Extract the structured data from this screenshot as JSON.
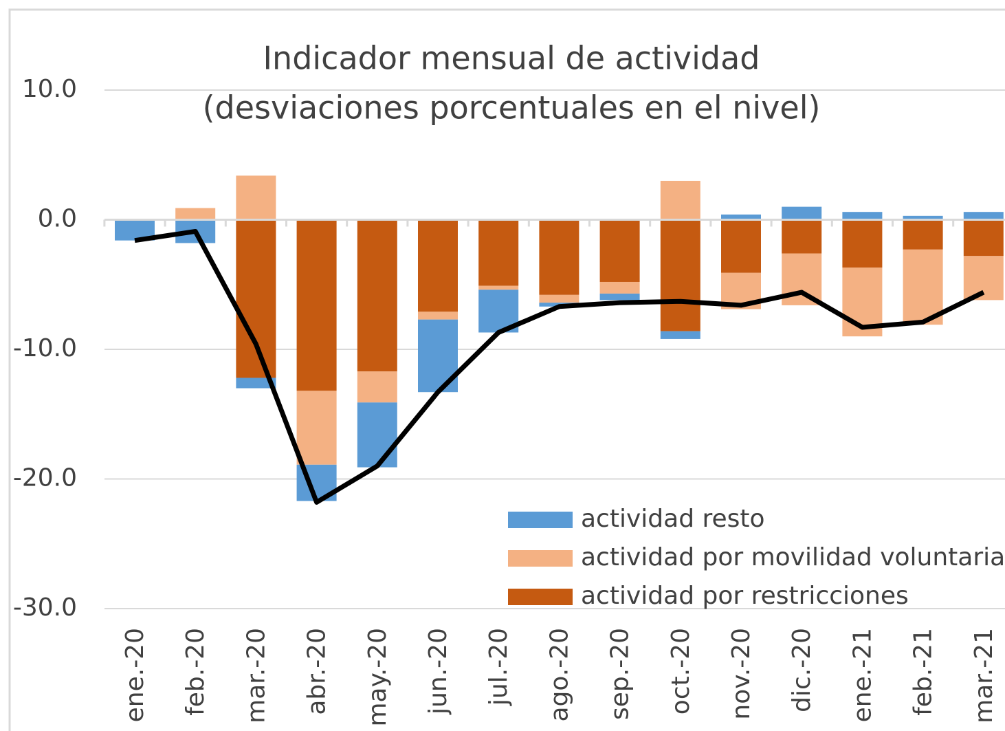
{
  "chart_data": {
    "type": "bar",
    "title": [
      "Indicador mensual de actividad",
      "(desviaciones porcentuales en el nivel)"
    ],
    "categories": [
      "ene.-20",
      "feb.-20",
      "mar.-20",
      "abr.-20",
      "may.-20",
      "jun.-20",
      "jul.-20",
      "ago.-20",
      "sep.-20",
      "oct.-20",
      "nov.-20",
      "dic.-20",
      "ene.-21",
      "feb.-21",
      "mar.-21"
    ],
    "series": [
      {
        "name": "actividad por restricciones",
        "color": "#c55a11",
        "values": [
          0,
          0,
          -12.2,
          -13.2,
          -11.7,
          -7.1,
          -5.1,
          -5.8,
          -4.8,
          -8.6,
          -4.1,
          -2.6,
          -3.7,
          -2.3,
          -2.8
        ]
      },
      {
        "name": "actividad por movilidad voluntaria",
        "color": "#f4b183",
        "values": [
          0,
          0.9,
          3.4,
          -5.7,
          -2.4,
          -0.6,
          -0.3,
          -0.6,
          -0.9,
          3.0,
          -2.8,
          -4.0,
          -5.3,
          -5.8,
          -3.4
        ]
      },
      {
        "name": "actividad resto",
        "color": "#5b9bd5",
        "values": [
          -1.6,
          -1.8,
          -0.8,
          -2.8,
          -5.0,
          -5.6,
          -3.3,
          -0.3,
          -0.5,
          -0.6,
          0.4,
          1.0,
          0.6,
          0.3,
          0.6
        ]
      },
      {
        "type": "line",
        "color": "#000000",
        "values": [
          -1.6,
          -0.9,
          -9.6,
          -21.8,
          -19.0,
          -13.3,
          -8.7,
          -6.7,
          -6.4,
          -6.3,
          -6.6,
          -5.6,
          -8.3,
          -7.9,
          -5.6
        ]
      }
    ],
    "stacked": true,
    "ylim": [
      -30,
      10
    ],
    "yticks": [
      {
        "value": -30,
        "label": "-30.0"
      },
      {
        "value": -20,
        "label": "-20.0"
      },
      {
        "value": -10,
        "label": "-10.0"
      },
      {
        "value": 0,
        "label": "0.0"
      },
      {
        "value": 10,
        "label": "10.0"
      }
    ],
    "grid": true,
    "legend": "lower right"
  }
}
